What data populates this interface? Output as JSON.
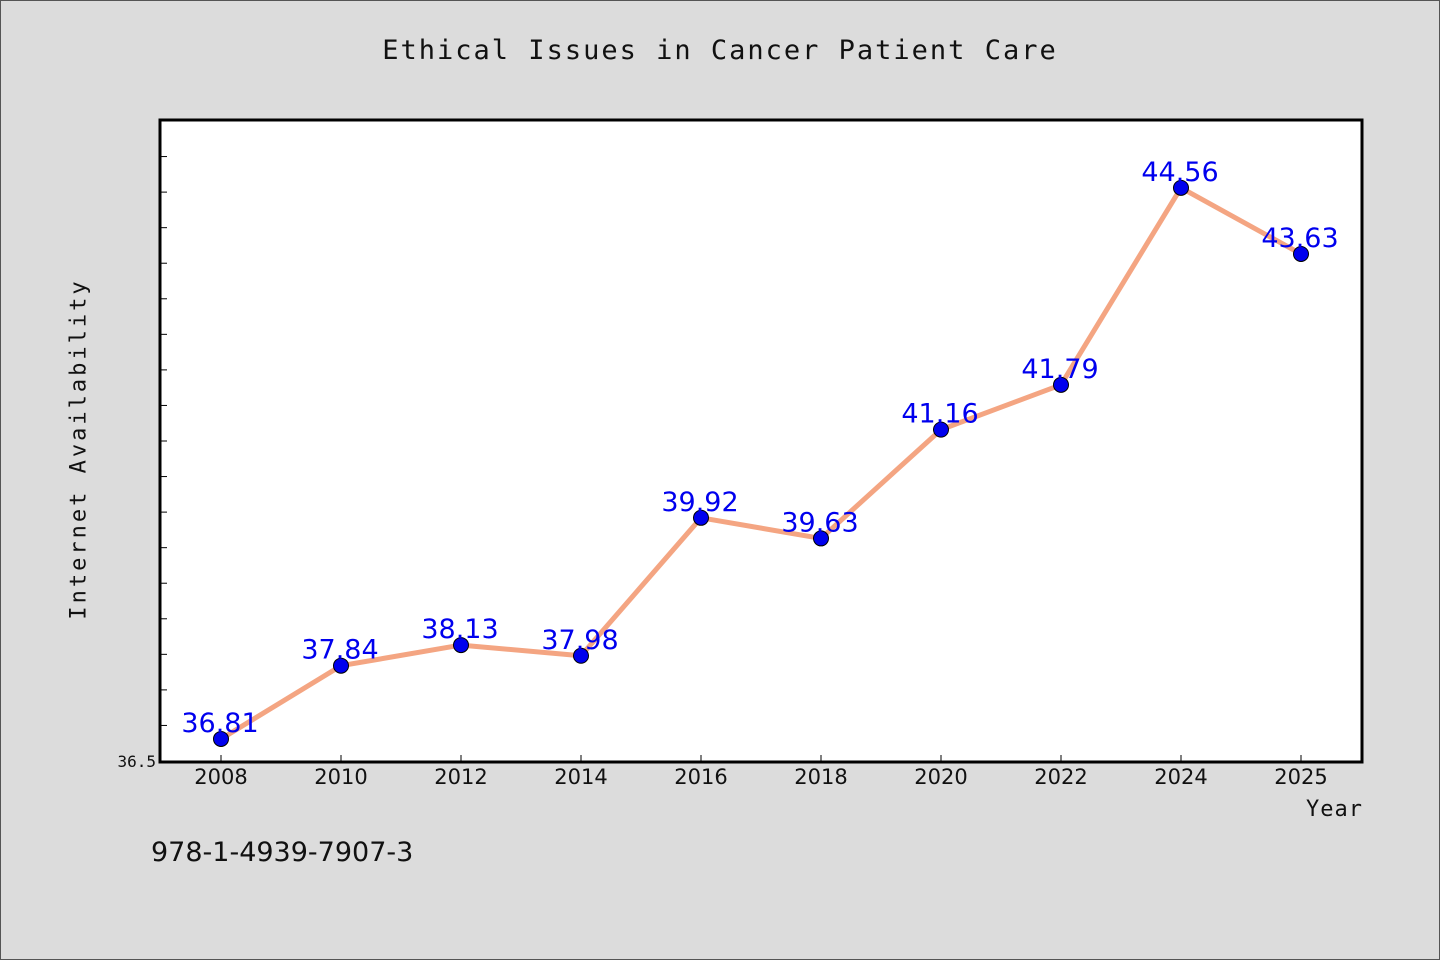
{
  "chart_data": {
    "type": "line",
    "title": "Ethical Issues in Cancer Patient Care",
    "xlabel": "Year",
    "ylabel": "Internet Availability",
    "x": [
      "2008",
      "2010",
      "2012",
      "2014",
      "2016",
      "2018",
      "2020",
      "2022",
      "2024",
      "2025"
    ],
    "values": [
      36.81,
      37.84,
      38.13,
      37.98,
      39.92,
      39.63,
      41.16,
      41.79,
      44.56,
      43.63
    ],
    "data_labels": [
      "36.81",
      "37.84",
      "38.13",
      "37.98",
      "39.92",
      "39.63",
      "41.16",
      "41.79",
      "44.56",
      "43.63"
    ],
    "ylim": [
      36.5,
      45.5
    ],
    "y_tick_labels": [
      "36.5"
    ],
    "grid": false,
    "legend": "none",
    "colors": {
      "line": "#f4a582",
      "marker": "#0000ee",
      "label": "#0000ee"
    }
  },
  "footer": {
    "isbn": "978-1-4939-7907-3"
  }
}
